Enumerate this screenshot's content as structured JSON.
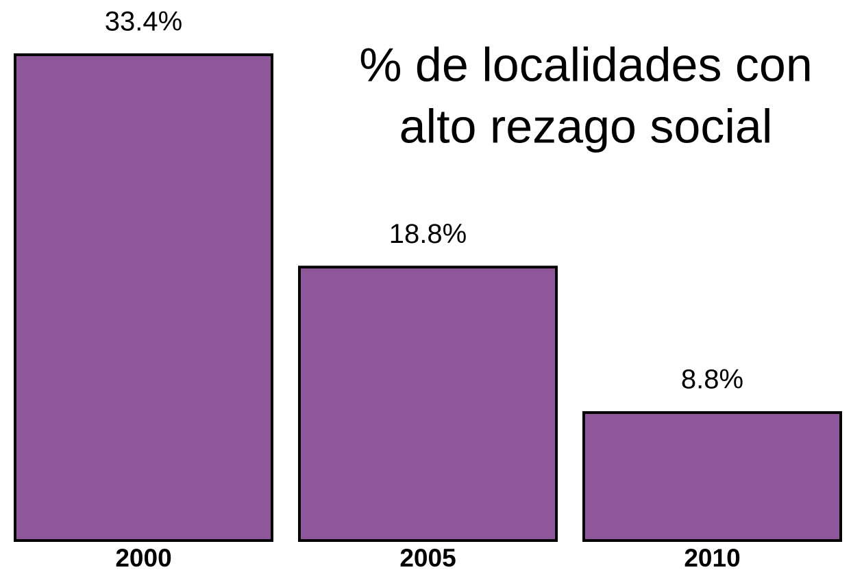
{
  "chart_data": {
    "type": "bar",
    "title": [
      "% de localidades con",
      "alto rezago social"
    ],
    "categories": [
      "2000",
      "2005",
      "2010"
    ],
    "values": [
      33.4,
      18.8,
      8.8
    ],
    "value_labels": [
      "33.4%",
      "18.8%",
      "8.8%"
    ],
    "color": "#8e579a"
  }
}
